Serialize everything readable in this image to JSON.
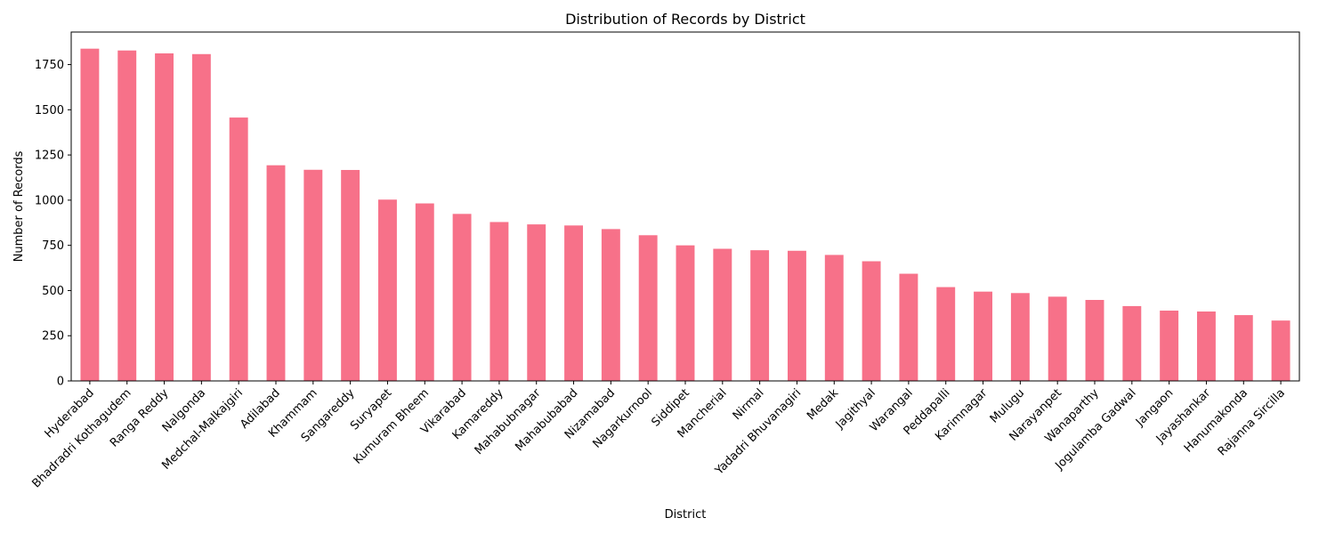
{
  "chart_data": {
    "type": "bar",
    "title": "Distribution of Records by District",
    "xlabel": "District",
    "ylabel": "Number of Records",
    "ylim": [
      0,
      1930
    ],
    "yticks": [
      0,
      250,
      500,
      750,
      1000,
      1250,
      1500,
      1750
    ],
    "grid": false,
    "bar_color": "#f77189",
    "categories": [
      "Hyderabad",
      "Bhadradri Kothagudem",
      "Ranga Reddy",
      "Nalgonda",
      "Medchal-Malkajgiri",
      "Adilabad",
      "Khammam",
      "Sangareddy",
      "Suryapet",
      "Kumuram Bheem",
      "Vikarabad",
      "Kamareddy",
      "Mahabubnagar",
      "Mahabubabad",
      "Nizamabad",
      "Nagarkurnool",
      "Siddipet",
      "Mancherial",
      "Nirmal",
      "Yadadri Bhuvanagiri",
      "Medak",
      "Jagithyal",
      "Warangal",
      "Peddapalli",
      "Karimnagar",
      "Mulugu",
      "Narayanpet",
      "Wanaparthy",
      "Jogulamba Gadwal",
      "Jangaon",
      "Jayashankar",
      "Hanumakonda",
      "Rajanna Sircilla"
    ],
    "values": [
      1838,
      1828,
      1812,
      1808,
      1457,
      1193,
      1168,
      1167,
      1003,
      982,
      924,
      879,
      866,
      860,
      840,
      806,
      750,
      731,
      723,
      720,
      697,
      662,
      593,
      519,
      494,
      486,
      466,
      448,
      414,
      389,
      384,
      364,
      334
    ]
  }
}
